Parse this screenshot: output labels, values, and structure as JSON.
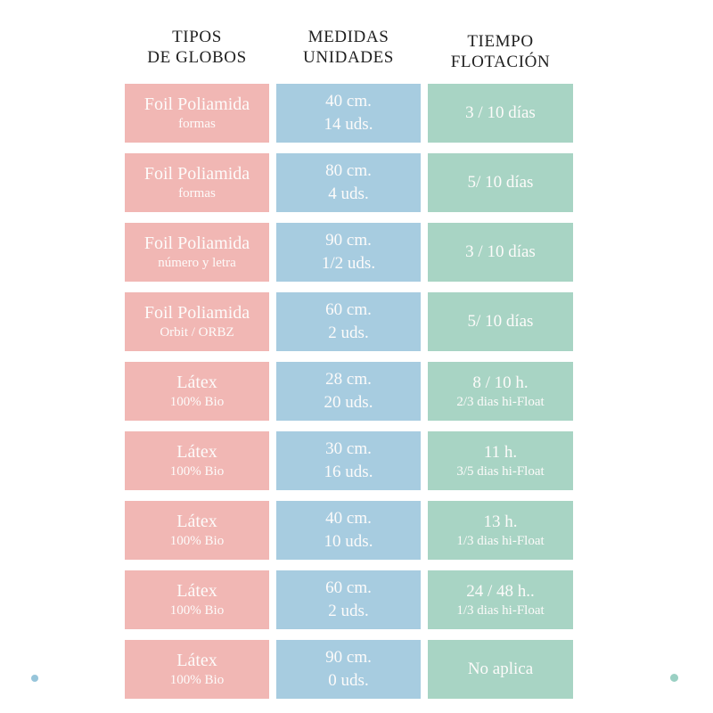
{
  "headers": [
    {
      "line1": "TIPOS",
      "line2": "DE GLOBOS"
    },
    {
      "line1": "MEDIDAS",
      "line2": "UNIDADES"
    },
    {
      "line1": "TIEMPO",
      "line2": "FLOTACIÓN"
    }
  ],
  "rows": [
    {
      "type": {
        "line1": "Foil Poliamida",
        "line2": "formas"
      },
      "measure": {
        "line1": "40 cm.",
        "line2": "14 uds."
      },
      "float": {
        "line1": "3 / 10 días",
        "line2": ""
      }
    },
    {
      "type": {
        "line1": "Foil Poliamida",
        "line2": "formas"
      },
      "measure": {
        "line1": "80 cm.",
        "line2": "4 uds."
      },
      "float": {
        "line1": "5/ 10 días",
        "line2": ""
      }
    },
    {
      "type": {
        "line1": "Foil Poliamida",
        "line2": "número y letra"
      },
      "measure": {
        "line1": "90 cm.",
        "line2": "1/2 uds."
      },
      "float": {
        "line1": "3 / 10 días",
        "line2": ""
      }
    },
    {
      "type": {
        "line1": "Foil Poliamida",
        "line2": "Orbit / ORBZ"
      },
      "measure": {
        "line1": "60 cm.",
        "line2": "2 uds."
      },
      "float": {
        "line1": "5/ 10 días",
        "line2": ""
      }
    },
    {
      "type": {
        "line1": "Látex",
        "line2": "100% Bio"
      },
      "measure": {
        "line1": "28 cm.",
        "line2": "20 uds."
      },
      "float": {
        "line1": "8 / 10 h.",
        "line2": "2/3 dias hi-Float"
      }
    },
    {
      "type": {
        "line1": "Látex",
        "line2": "100% Bio"
      },
      "measure": {
        "line1": "30 cm.",
        "line2": "16 uds."
      },
      "float": {
        "line1": "11 h.",
        "line2": "3/5 dias hi-Float"
      }
    },
    {
      "type": {
        "line1": "Látex",
        "line2": "100% Bio"
      },
      "measure": {
        "line1": "40 cm.",
        "line2": "10 uds."
      },
      "float": {
        "line1": "13 h.",
        "line2": "1/3 dias hi-Float"
      }
    },
    {
      "type": {
        "line1": "Látex",
        "line2": "100% Bio"
      },
      "measure": {
        "line1": "60 cm.",
        "line2": "2 uds."
      },
      "float": {
        "line1": "24 / 48 h..",
        "line2": "1/3 dias hi-Float"
      }
    },
    {
      "type": {
        "line1": "Látex",
        "line2": "100% Bio"
      },
      "measure": {
        "line1": "90 cm.",
        "line2": "0 uds."
      },
      "float": {
        "line1": "No aplica",
        "line2": ""
      }
    }
  ],
  "colors": {
    "type_cell": "#f1b7b4",
    "measure_cell": "#a7cce0",
    "float_cell": "#a8d4c4",
    "header_text": "#1f1f1f",
    "cell_text": "#fdfbfa",
    "dot_left": "#97c5da",
    "dot_right": "#9ad0c3"
  },
  "chart_data": {
    "type": "table",
    "title": "",
    "columns": [
      "TIPOS DE GLOBOS",
      "MEDIDAS UNIDADES",
      "TIEMPO FLOTACIÓN"
    ],
    "rows": [
      [
        "Foil Poliamida formas",
        "40 cm. 14 uds.",
        "3 / 10 días"
      ],
      [
        "Foil Poliamida formas",
        "80 cm. 4 uds.",
        "5/ 10 días"
      ],
      [
        "Foil Poliamida número y letra",
        "90 cm. 1/2 uds.",
        "3 / 10 días"
      ],
      [
        "Foil Poliamida Orbit / ORBZ",
        "60 cm. 2 uds.",
        "5/ 10 días"
      ],
      [
        "Látex 100% Bio",
        "28 cm. 20 uds.",
        "8 / 10 h. 2/3 dias hi-Float"
      ],
      [
        "Látex 100% Bio",
        "30 cm. 16 uds.",
        "11 h. 3/5 dias hi-Float"
      ],
      [
        "Látex 100% Bio",
        "40 cm. 10 uds.",
        "13 h. 1/3 dias hi-Float"
      ],
      [
        "Látex 100% Bio",
        "60 cm. 2 uds.",
        "24 / 48 h.. 1/3 dias hi-Float"
      ],
      [
        "Látex 100% Bio",
        "90 cm. 0 uds.",
        "No aplica"
      ]
    ],
    "legend_position": "none",
    "grid": false
  }
}
